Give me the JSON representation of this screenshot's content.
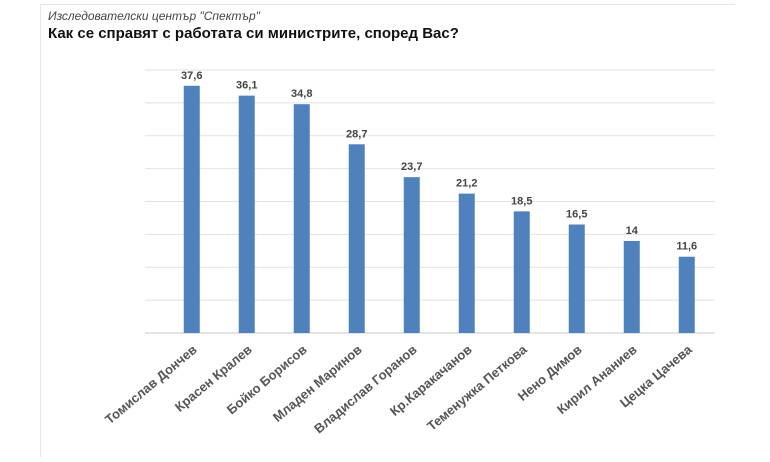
{
  "header": {
    "subtitle": "Изследователски център \"Спектър\"",
    "title": "Как се справят с работата си министрите, според Вас?"
  },
  "chart_data": {
    "type": "bar",
    "title": "Как се справят с работата си министрите, според Вас?",
    "subtitle": "Изследователски център \"Спектър\"",
    "categories": [
      "Томислав Дончев",
      "Красен Кралев",
      "Бойко Борисов",
      "Младен Маринов",
      "Владислав Горанов",
      "Кр.Каракачанов",
      "Теменужка Петкова",
      "Нено Димов",
      "Кирил Ананиев",
      "Цецка Цачева"
    ],
    "values": [
      37.6,
      36.1,
      34.8,
      28.7,
      23.7,
      21.2,
      18.5,
      16.5,
      14,
      11.6
    ],
    "data_labels": [
      "37,6",
      "36,1",
      "34,8",
      "28,7",
      "23,7",
      "21,2",
      "18,5",
      "16,5",
      "14",
      "11,6"
    ],
    "xlabel": "",
    "ylabel": "",
    "ylim": [
      0,
      40
    ],
    "grid": true,
    "bar_color": "#4f81bd"
  }
}
